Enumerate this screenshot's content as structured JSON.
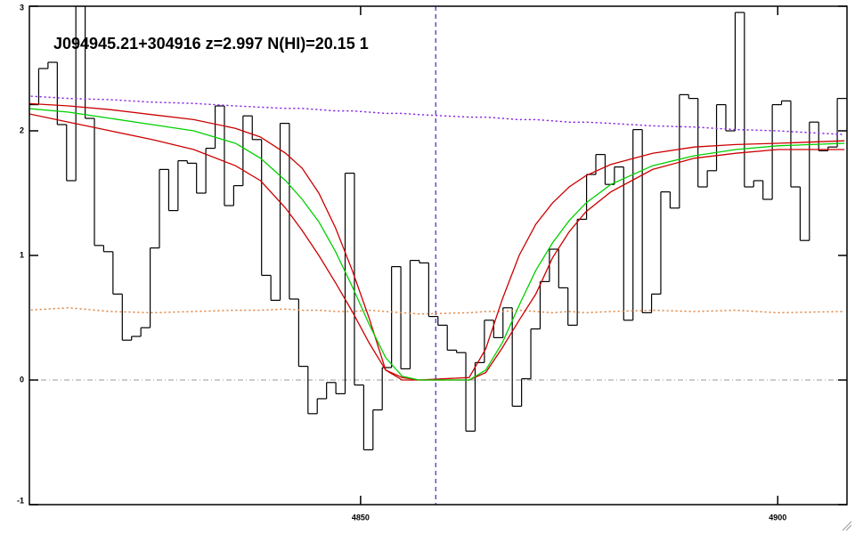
{
  "chart_data": {
    "type": "spectrum",
    "title": "J094945.21+304916 z=2.997 N(HI)=20.15 1",
    "xlim": [
      4810.3,
      4908.3
    ],
    "ylim": [
      -1,
      3
    ],
    "xticks": [
      4850,
      4900
    ],
    "yticks": [
      -1,
      0,
      1,
      2,
      3
    ],
    "vline": {
      "x": 4859.0,
      "color": "#0000cc"
    },
    "hline": {
      "y": 0,
      "color": "#999999"
    },
    "series": [
      {
        "style": "step",
        "color": "#000000",
        "x": [
          4810.86,
          4811.97,
          4813.09,
          4814.2,
          4815.31,
          4816.43,
          4817.54,
          4818.65,
          4819.76,
          4820.88,
          4821.99,
          4823.1,
          4824.22,
          4825.33,
          4826.44,
          4827.56,
          4828.67,
          4829.78,
          4830.89,
          4832.01,
          4833.12,
          4834.23,
          4835.35,
          4836.46,
          4837.57,
          4838.69,
          4839.8,
          4840.91,
          4842.02,
          4843.14,
          4844.25,
          4845.36,
          4846.48,
          4847.59,
          4848.7,
          4849.82,
          4850.93,
          4852.04,
          4853.15,
          4854.27,
          4855.38,
          4856.49,
          4857.61,
          4858.72,
          4859.83,
          4860.95,
          4862.06,
          4863.17,
          4864.28,
          4865.4,
          4866.51,
          4867.62,
          4868.74,
          4869.85,
          4870.96,
          4872.08,
          4873.19,
          4874.3,
          4875.41,
          4876.53,
          4877.64,
          4878.75,
          4879.87,
          4880.98,
          4882.09,
          4883.21,
          4884.32,
          4885.43,
          4886.54,
          4887.66,
          4888.77,
          4889.88,
          4891.0,
          4892.11,
          4893.22,
          4894.34,
          4895.45,
          4896.56,
          4897.67,
          4898.79,
          4899.9,
          4901.01,
          4902.13,
          4903.24,
          4904.35,
          4905.47,
          4906.58,
          4907.69
        ],
        "values": [
          2.21,
          2.5,
          2.55,
          2.05,
          1.6,
          3.0,
          2.1,
          1.08,
          1.03,
          0.69,
          0.32,
          0.35,
          0.42,
          1.06,
          1.69,
          1.36,
          1.76,
          1.74,
          1.5,
          1.86,
          2.2,
          1.4,
          1.56,
          2.12,
          1.93,
          0.84,
          0.64,
          2.06,
          0.65,
          0.11,
          -0.27,
          -0.15,
          -0.02,
          -0.11,
          1.66,
          -0.04,
          -0.56,
          -0.24,
          0.1,
          0.91,
          0.09,
          0.96,
          0.94,
          0.51,
          0.44,
          0.24,
          0.22,
          -0.41,
          0.14,
          0.48,
          0.34,
          0.58,
          -0.21,
          0.01,
          0.41,
          0.79,
          1.05,
          0.74,
          0.44,
          1.29,
          1.65,
          1.81,
          1.57,
          1.71,
          0.48,
          2.01,
          0.54,
          0.69,
          1.51,
          1.38,
          2.29,
          2.26,
          1.55,
          1.68,
          2.21,
          2.0,
          2.95,
          1.55,
          1.6,
          1.45,
          2.21,
          2.24,
          1.55,
          1.12,
          2.07,
          1.84,
          1.87,
          2.26
        ]
      },
      {
        "style": "dotted",
        "color": "#e08a4a",
        "x": [
          4810,
          4815,
          4820,
          4825,
          4830,
          4835,
          4838,
          4841,
          4843,
          4845,
          4847,
          4849,
          4851,
          4853,
          4855,
          4857,
          4863,
          4865,
          4867,
          4869,
          4871,
          4873,
          4875,
          4877,
          4880,
          4885,
          4890,
          4895,
          4900,
          4908
        ],
        "values": [
          0.56,
          0.58,
          0.55,
          0.54,
          0.55,
          0.56,
          0.56,
          0.57,
          0.56,
          0.56,
          0.55,
          0.55,
          0.56,
          0.55,
          0.54,
          0.53,
          0.54,
          0.55,
          0.55,
          0.56,
          0.55,
          0.54,
          0.55,
          0.54,
          0.55,
          0.56,
          0.55,
          0.56,
          0.54,
          0.55
        ]
      },
      {
        "style": "dotted",
        "color": "#8a2be2",
        "x": [
          4810,
          4815,
          4820,
          4825,
          4830,
          4835,
          4838,
          4841,
          4843,
          4845,
          4847,
          4849,
          4851,
          4853,
          4855,
          4857,
          4863,
          4865,
          4867,
          4869,
          4871,
          4873,
          4875,
          4877,
          4880,
          4885,
          4890,
          4895,
          4900,
          4908
        ],
        "values": [
          2.28,
          2.26,
          2.25,
          2.23,
          2.22,
          2.2,
          2.19,
          2.18,
          2.18,
          2.17,
          2.16,
          2.16,
          2.15,
          2.14,
          2.14,
          2.13,
          2.11,
          2.11,
          2.1,
          2.09,
          2.09,
          2.08,
          2.07,
          2.07,
          2.06,
          2.04,
          2.03,
          2.01,
          2.0,
          1.97
        ]
      },
      {
        "style": "solid",
        "color": "#cc0000",
        "x": [
          4810,
          4815,
          4820,
          4825,
          4830,
          4835,
          4838,
          4841,
          4843,
          4845,
          4847,
          4849,
          4851,
          4853,
          4855,
          4857,
          4863,
          4865,
          4867,
          4869,
          4871,
          4873,
          4875,
          4877,
          4880,
          4885,
          4890,
          4895,
          4900,
          4908
        ],
        "values": [
          2.22,
          2.2,
          2.17,
          2.13,
          2.09,
          2.02,
          1.95,
          1.82,
          1.7,
          1.5,
          1.22,
          0.88,
          0.5,
          0.08,
          0,
          0,
          0.02,
          0.25,
          0.65,
          1.0,
          1.25,
          1.42,
          1.55,
          1.64,
          1.73,
          1.82,
          1.87,
          1.89,
          1.9,
          1.92
        ]
      },
      {
        "style": "solid",
        "color": "#cc0000",
        "x": [
          4810,
          4815,
          4820,
          4825,
          4830,
          4835,
          4838,
          4841,
          4843,
          4845,
          4847,
          4849,
          4851,
          4853,
          4855,
          4857,
          4863,
          4865,
          4867,
          4869,
          4871,
          4873,
          4875,
          4877,
          4880,
          4885,
          4890,
          4895,
          4900,
          4908
        ],
        "values": [
          2.14,
          2.07,
          2.0,
          1.93,
          1.85,
          1.72,
          1.6,
          1.38,
          1.2,
          1.0,
          0.78,
          0.55,
          0.3,
          0.08,
          0.02,
          0,
          0,
          0.06,
          0.26,
          0.48,
          0.69,
          0.98,
          1.19,
          1.35,
          1.51,
          1.69,
          1.78,
          1.82,
          1.85,
          1.85
        ]
      },
      {
        "style": "solid",
        "color": "#00d000",
        "x": [
          4810,
          4815,
          4820,
          4825,
          4830,
          4835,
          4838,
          4841,
          4843,
          4845,
          4847,
          4849,
          4851,
          4853,
          4855,
          4857,
          4863,
          4865,
          4867,
          4869,
          4871,
          4873,
          4875,
          4877,
          4880,
          4885,
          4890,
          4895,
          4900,
          4908
        ],
        "values": [
          2.18,
          2.15,
          2.1,
          2.05,
          2.0,
          1.9,
          1.78,
          1.6,
          1.45,
          1.27,
          1.03,
          0.75,
          0.45,
          0.18,
          0.03,
          0,
          0,
          0.08,
          0.3,
          0.6,
          0.88,
          1.1,
          1.28,
          1.42,
          1.57,
          1.72,
          1.8,
          1.85,
          1.88,
          1.9
        ]
      }
    ]
  }
}
